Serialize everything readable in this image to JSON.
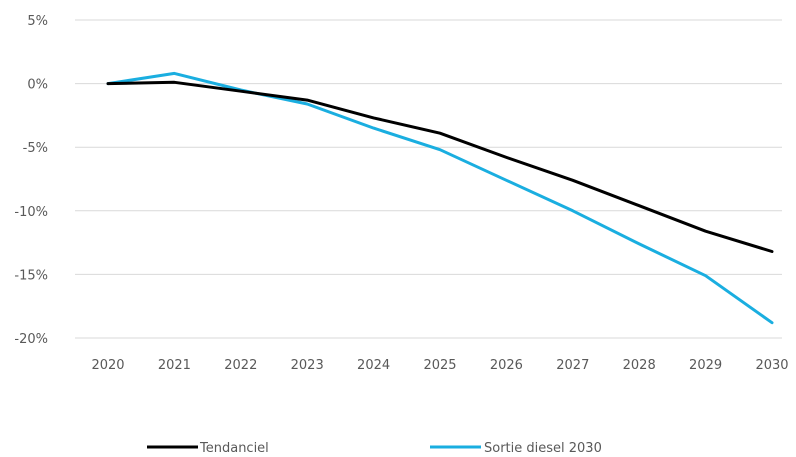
{
  "chart_data": {
    "type": "line",
    "x": [
      "2020",
      "2021",
      "2022",
      "2023",
      "2024",
      "2025",
      "2026",
      "2027",
      "2028",
      "2029",
      "2030"
    ],
    "series": [
      {
        "name": "Tendanciel",
        "color": "#000000",
        "values": [
          0.0,
          0.1,
          -0.6,
          -1.3,
          -2.7,
          -3.9,
          -5.8,
          -7.6,
          -9.6,
          -11.6,
          -13.2
        ]
      },
      {
        "name": "Sortie diesel 2030",
        "color": "#1AAEE0",
        "values": [
          0.0,
          0.8,
          -0.5,
          -1.6,
          -3.5,
          -5.2,
          -7.6,
          -10.0,
          -12.6,
          -15.1,
          -18.8
        ]
      }
    ],
    "y_ticks": [
      "5%",
      "0%",
      "-5%",
      "-10%",
      "-15%",
      "-20%"
    ],
    "y_tick_values": [
      5,
      0,
      -5,
      -10,
      -15,
      -20
    ],
    "ylim": [
      -20,
      5
    ],
    "grid": true,
    "legend": "bottom"
  }
}
